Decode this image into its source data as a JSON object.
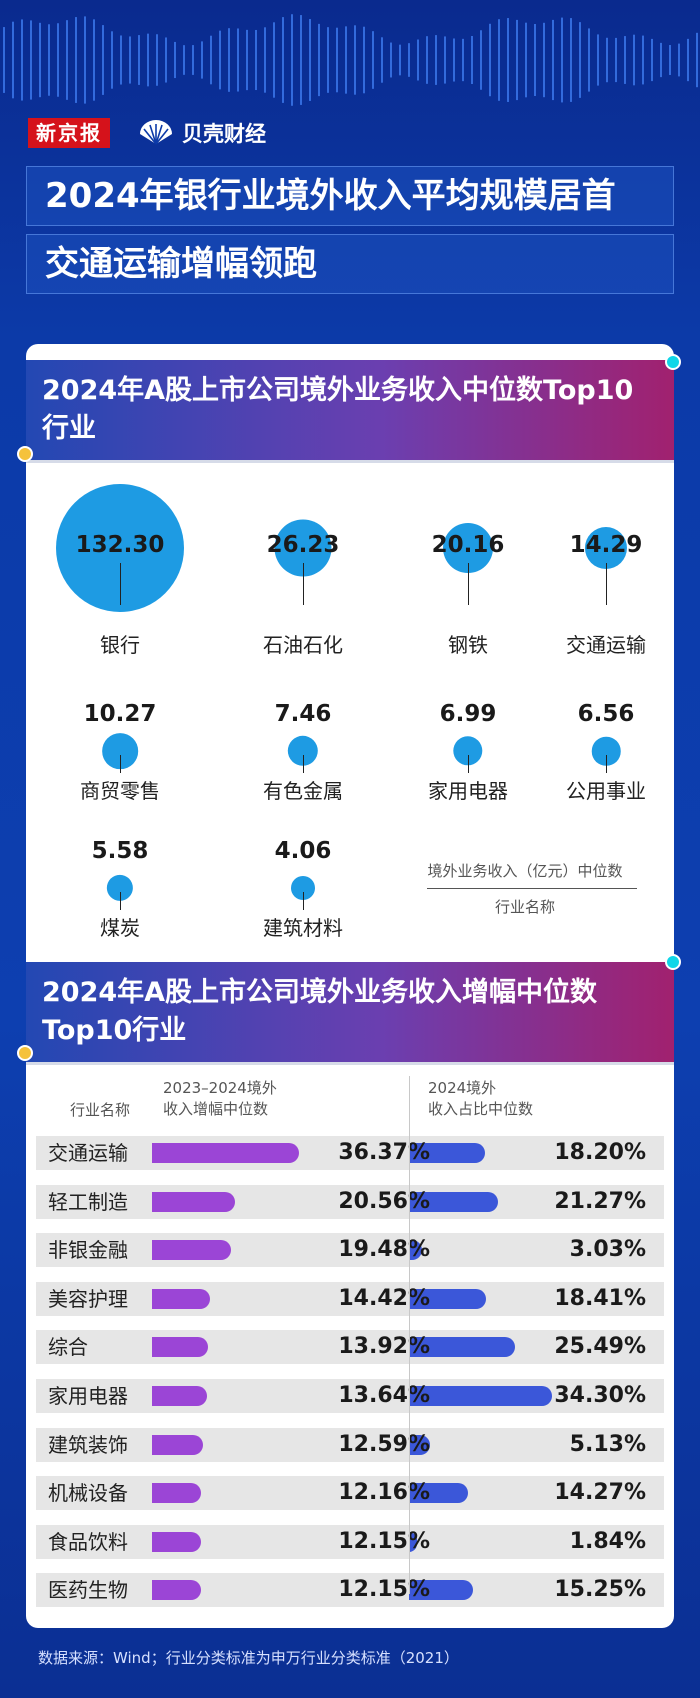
{
  "brand": {
    "xjb": "新京报",
    "beike": "贝壳财经"
  },
  "title_line1": "2024年银行业境外收入平均规模居首",
  "title_line2": "交通运输增幅领跑",
  "colors": {
    "accent_cyan": "#10d6e8",
    "accent_yellow": "#f5c23b",
    "bubble": "#1e9be3",
    "bar_growth": "#9b45d6",
    "bar_share": "#3b57d9",
    "logo_red": "#d5121b"
  },
  "section1": {
    "title": "2024年A股上市公司境外业务收入中位数Top10行业",
    "legend_value_label": "境外业务收入（亿元）中位数",
    "legend_name_label": "行业名称"
  },
  "section2": {
    "title": "2024年A股上市公司境外业务收入增幅中位数Top10行业",
    "col_name": "行业名称",
    "col_growth": [
      "2023–2024境外",
      "收入增幅中位数"
    ],
    "col_share": [
      "2024境外",
      "收入占比中位数"
    ]
  },
  "chart_data": [
    {
      "type": "bubble",
      "categories": [
        "银行",
        "石油石化",
        "钢铁",
        "交通运输",
        "商贸零售",
        "有色金属",
        "家用电器",
        "公用事业",
        "煤炭",
        "建筑材料"
      ],
      "values": [
        132.3,
        26.23,
        20.16,
        14.29,
        10.27,
        7.46,
        6.99,
        6.56,
        5.58,
        4.06
      ],
      "value_labels": [
        "132.30",
        "26.23",
        "20.16",
        "14.29",
        "10.27",
        "7.46",
        "6.99",
        "6.56",
        "5.58",
        "4.06"
      ]
    },
    {
      "type": "bar",
      "orientation": "horizontal",
      "categories": [
        "交通运输",
        "轻工制造",
        "非银金融",
        "美容护理",
        "综合",
        "家用电器",
        "建筑装饰",
        "机械设备",
        "食品饮料",
        "医药生物"
      ],
      "series": [
        {
          "values": [
            36.37,
            20.56,
            19.48,
            14.42,
            13.92,
            13.64,
            12.59,
            12.16,
            12.15,
            12.15
          ],
          "labels": [
            "36.37%",
            "20.56%",
            "19.48%",
            "14.42%",
            "13.92%",
            "13.64%",
            "12.59%",
            "12.16%",
            "12.15%",
            "12.15%"
          ]
        },
        {
          "values": [
            18.2,
            21.27,
            3.03,
            18.41,
            25.49,
            34.3,
            5.13,
            14.27,
            1.84,
            15.25
          ],
          "labels": [
            "18.20%",
            "21.27%",
            "3.03%",
            "18.41%",
            "25.49%",
            "34.30%",
            "5.13%",
            "14.27%",
            "1.84%",
            "15.25%"
          ]
        }
      ]
    }
  ],
  "footer": "数据来源：Wind；行业分类标准为申万行业分类标准（2021）"
}
